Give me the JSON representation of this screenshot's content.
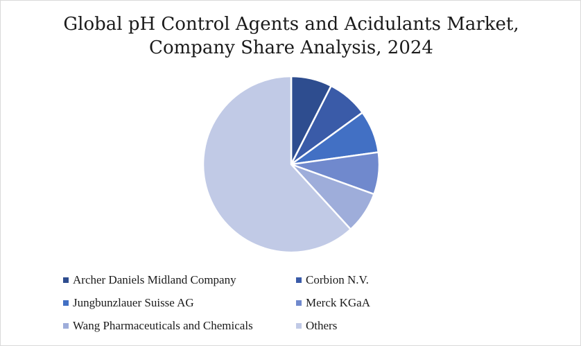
{
  "chart_data": {
    "type": "pie",
    "title_lines": [
      "Global pH Control Agents and Acidulants Market,",
      "Company Share Analysis, 2024"
    ],
    "slices": [
      {
        "label": "Archer Daniels Midland Company",
        "value": 7.5,
        "color": "#2e4d8f"
      },
      {
        "label": "Corbion N.V.",
        "value": 7.5,
        "color": "#3a5ba8"
      },
      {
        "label": "Jungbunzlauer Suisse AG",
        "value": 7.8,
        "color": "#4270c4"
      },
      {
        "label": "Merck KGaA",
        "value": 7.7,
        "color": "#7089cd"
      },
      {
        "label": "Wang Pharmaceuticals and Chemicals",
        "value": 7.7,
        "color": "#9eadda"
      },
      {
        "label": "Others",
        "value": 61.8,
        "color": "#c1cae6"
      }
    ],
    "legend_position": "bottom"
  }
}
